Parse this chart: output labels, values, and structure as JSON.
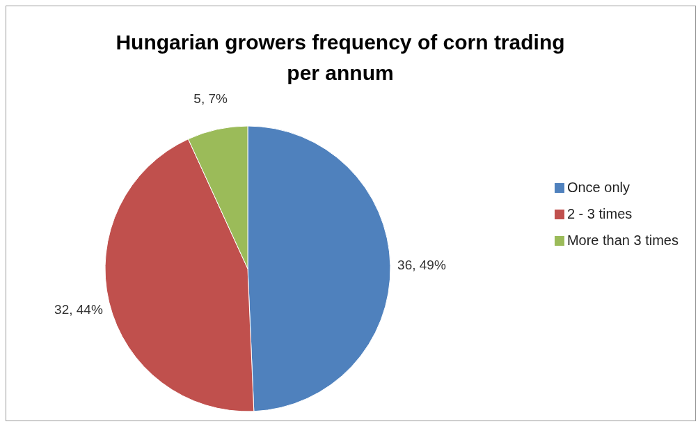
{
  "chart_data": {
    "type": "pie",
    "title": "Hungarian growers frequency of corn trading per annum",
    "categories": [
      "Once only",
      "2 - 3 times",
      "More than 3 times"
    ],
    "values": [
      36,
      32,
      5
    ],
    "colors": [
      "#4f81bd",
      "#c0504d",
      "#9bbb59"
    ],
    "value_labels": [
      "36, 49%",
      "32, 44%",
      "5, 7%"
    ],
    "legend": "right"
  }
}
